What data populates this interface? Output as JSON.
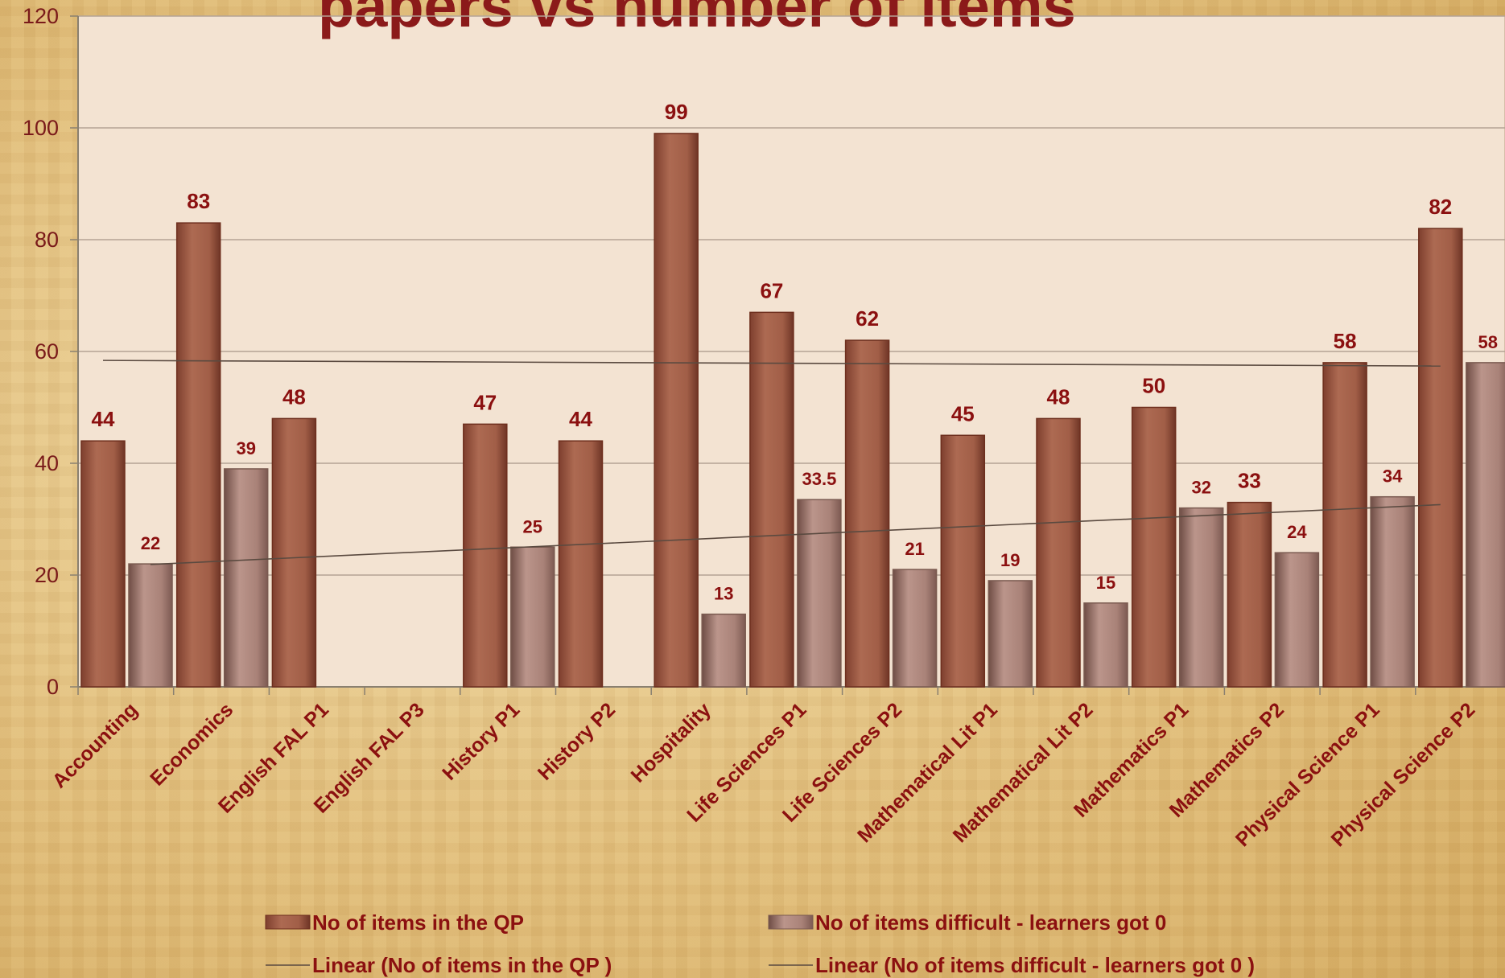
{
  "chart_data": {
    "type": "bar",
    "title": "papers vs number of items",
    "categories": [
      "Accounting",
      "Economics",
      "English FAL P1",
      "English FAL P3",
      "History P1",
      "History P2",
      "Hospitality",
      "Life Sciences P1",
      "Life Sciences P2",
      "Mathematical Lit P1",
      "Mathematical Lit P2",
      "Mathematics P1",
      "Mathematics P2",
      "Physical Science P1",
      "Physical Science P2"
    ],
    "series": [
      {
        "name": "No of items in the QP",
        "color": "#a0604a",
        "values": [
          44,
          83,
          48,
          null,
          47,
          44,
          99,
          67,
          62,
          45,
          48,
          50,
          33,
          58,
          82
        ]
      },
      {
        "name": "No of items difficult - learners got 0",
        "color": "#b08a80",
        "values": [
          22,
          39,
          null,
          null,
          25,
          null,
          13,
          33.5,
          21,
          19,
          15,
          32,
          24,
          34,
          58
        ]
      }
    ],
    "trendlines": [
      {
        "name": "Linear (No of items in the QP  )",
        "series": 0,
        "start": 58.4,
        "end": 57.4
      },
      {
        "name": "Linear (No of items difficult - learners got 0  )",
        "series": 1,
        "start": 21.9,
        "end": 32.6
      }
    ],
    "yticks": [
      "0",
      "20",
      "40",
      "60",
      "80",
      "100",
      "120"
    ],
    "ylim": [
      0,
      120
    ],
    "xlabel": "",
    "ylabel": "",
    "grid": true,
    "legend_position": "bottom"
  }
}
